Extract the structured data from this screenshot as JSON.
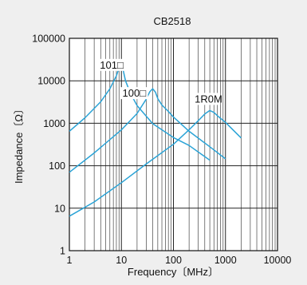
{
  "chart_data": {
    "type": "line",
    "title": "CB2518",
    "xlabel": "Frequency〔MHz〕",
    "ylabel": "Impedance〔Ω〕",
    "x_scale": "log",
    "y_scale": "log",
    "xlim": [
      1,
      10000
    ],
    "ylim": [
      1,
      100000
    ],
    "x_ticks": [
      "1",
      "10",
      "100",
      "1000",
      "10000"
    ],
    "y_ticks": [
      "1",
      "10",
      "100",
      "1000",
      "10000",
      "100000"
    ],
    "grid": true,
    "line_color": "#2aa3d6",
    "series": [
      {
        "name": "101□",
        "x": [
          1,
          2,
          4,
          6,
          8,
          9,
          10,
          11,
          12,
          15,
          20,
          40,
          100,
          200,
          500
        ],
        "y": [
          650,
          1350,
          3200,
          6500,
          13000,
          20000,
          30000,
          16000,
          10000,
          5000,
          2600,
          980,
          460,
          300,
          135
        ]
      },
      {
        "name": "100□",
        "x": [
          1,
          3,
          10,
          20,
          30,
          35,
          40,
          45,
          50,
          60,
          80,
          100,
          200,
          500,
          1000
        ],
        "y": [
          70,
          200,
          700,
          1700,
          3700,
          5500,
          6500,
          5400,
          3800,
          2700,
          1900,
          1400,
          650,
          280,
          145
        ]
      },
      {
        "name": "1R0M",
        "x": [
          1,
          3,
          10,
          30,
          100,
          200,
          300,
          400,
          500,
          600,
          700,
          1000,
          1500,
          2000
        ],
        "y": [
          6.5,
          14,
          40,
          110,
          320,
          700,
          1150,
          1650,
          2000,
          1800,
          1500,
          1050,
          640,
          450
        ]
      }
    ]
  }
}
